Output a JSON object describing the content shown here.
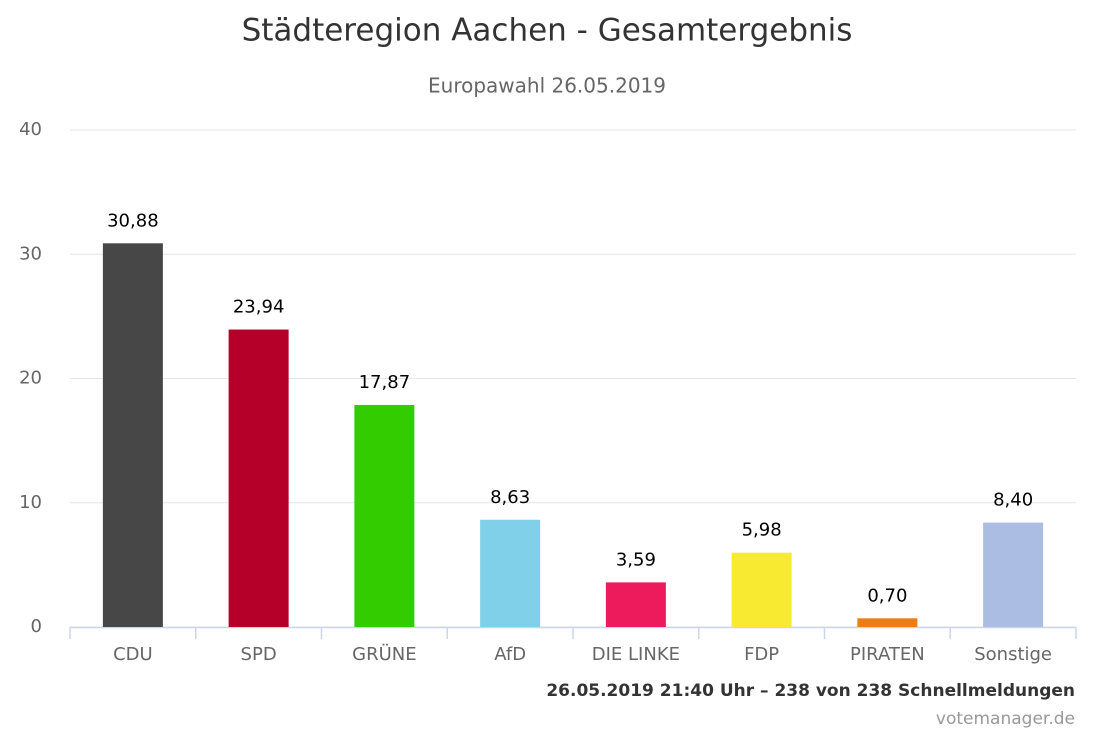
{
  "chart_data": {
    "type": "bar",
    "title": "Städteregion Aachen - Gesamtergebnis",
    "subtitle": "Europawahl 26.05.2019",
    "categories": [
      "CDU",
      "SPD",
      "GRÜNE",
      "AfD",
      "DIE LINKE",
      "FDP",
      "PIRATEN",
      "Sonstige"
    ],
    "values": [
      30.88,
      23.94,
      17.87,
      8.63,
      3.59,
      5.98,
      0.7,
      8.4
    ],
    "value_labels": [
      "30,88",
      "23,94",
      "17,87",
      "8,63",
      "3,59",
      "5,98",
      "0,70",
      "8,40"
    ],
    "colors": [
      "#474747",
      "#b5002a",
      "#33cc00",
      "#7fd0e8",
      "#ee1b5c",
      "#f7ea30",
      "#ef7d12",
      "#abbde3"
    ],
    "ylim": [
      0,
      40
    ],
    "yticks": [
      0,
      10,
      20,
      30,
      40
    ],
    "grid": true,
    "footer": "26.05.2019 21:40 Uhr – 238 von 238 Schnellmeldungen",
    "source": "votemanager.de"
  }
}
